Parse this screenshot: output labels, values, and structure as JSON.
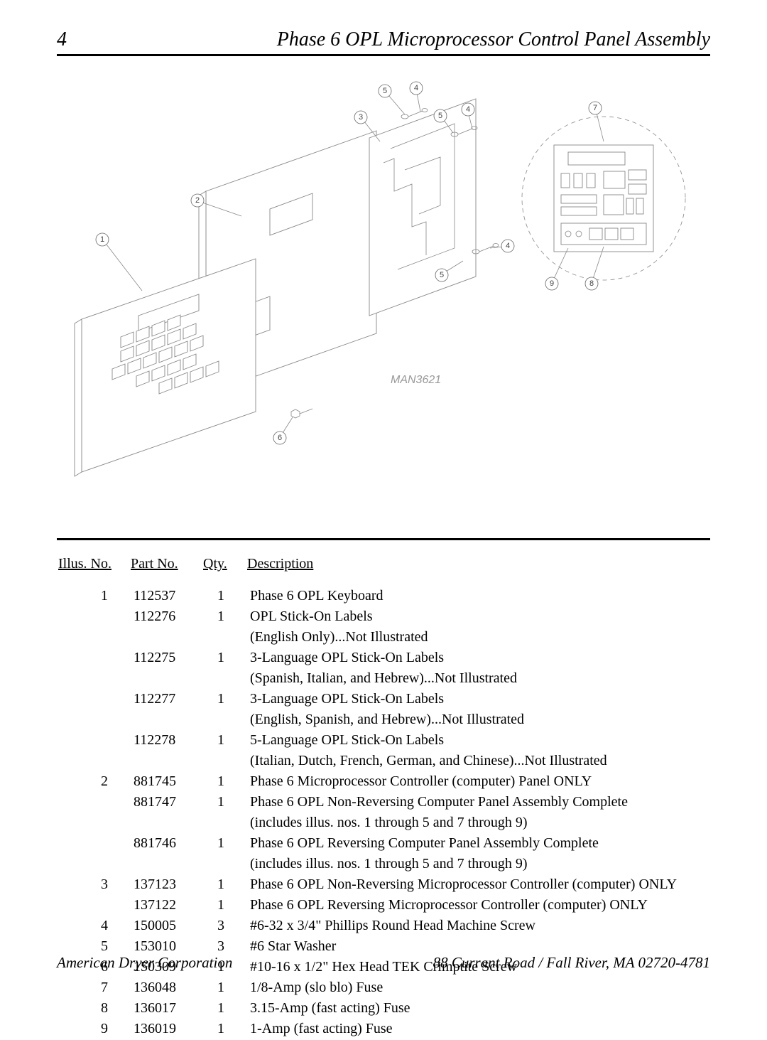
{
  "header": {
    "page_number": "4",
    "title": "Phase 6 OPL Microprocessor Control Panel Assembly"
  },
  "diagram": {
    "drawing_number": "MAN3621",
    "callouts": [
      "1",
      "2",
      "3",
      "4",
      "5",
      "6",
      "7",
      "8",
      "9"
    ],
    "label_color": "#999999",
    "line_color": "#888888"
  },
  "table": {
    "headers": {
      "illus": "Illus. No.",
      "part": "Part No.",
      "qty": "Qty.",
      "desc": "Description"
    },
    "rows": [
      {
        "illus": "1",
        "part": "112537",
        "qty": "1",
        "desc": "Phase 6 OPL Keyboard"
      },
      {
        "illus": "",
        "part": "112276",
        "qty": "1",
        "desc": "OPL Stick-On Labels"
      },
      {
        "illus": "",
        "part": "",
        "qty": "",
        "desc": "(English Only)...Not Illustrated"
      },
      {
        "illus": "",
        "part": "112275",
        "qty": "1",
        "desc": "3-Language OPL Stick-On Labels"
      },
      {
        "illus": "",
        "part": "",
        "qty": "",
        "desc": "(Spanish, Italian, and Hebrew)...Not Illustrated"
      },
      {
        "illus": "",
        "part": "112277",
        "qty": "1",
        "desc": "3-Language OPL Stick-On Labels"
      },
      {
        "illus": "",
        "part": "",
        "qty": "",
        "desc": "(English, Spanish, and Hebrew)...Not Illustrated"
      },
      {
        "illus": "",
        "part": "112278",
        "qty": "1",
        "desc": "5-Language OPL Stick-On Labels"
      },
      {
        "illus": "",
        "part": "",
        "qty": "",
        "desc": "(Italian, Dutch, French, German, and Chinese)...Not Illustrated"
      },
      {
        "illus": "2",
        "part": "881745",
        "qty": "1",
        "desc": "Phase 6 Microprocessor Controller (computer) Panel ONLY"
      },
      {
        "illus": "",
        "part": "881747",
        "qty": "1",
        "desc": "Phase 6 OPL Non-Reversing Computer Panel Assembly Complete"
      },
      {
        "illus": "",
        "part": "",
        "qty": "",
        "desc": "(includes illus. nos. 1 through 5 and 7 through 9)"
      },
      {
        "illus": "",
        "part": "881746",
        "qty": "1",
        "desc": "Phase 6 OPL Reversing Computer Panel Assembly Complete"
      },
      {
        "illus": "",
        "part": "",
        "qty": "",
        "desc": "(includes illus. nos. 1 through 5 and 7 through 9)"
      },
      {
        "illus": "3",
        "part": "137123",
        "qty": "1",
        "desc": "Phase 6 OPL Non-Reversing Microprocessor Controller (computer) ONLY"
      },
      {
        "illus": "",
        "part": "137122",
        "qty": "1",
        "desc": "Phase 6 OPL Reversing Microprocessor Controller (computer) ONLY"
      },
      {
        "illus": "4",
        "part": "150005",
        "qty": "3",
        "desc": "#6-32 x 3/4\" Phillips Round Head Machine Screw"
      },
      {
        "illus": "5",
        "part": "153010",
        "qty": "3",
        "desc": "#6 Star Washer"
      },
      {
        "illus": "6",
        "part": "150309",
        "qty": "1",
        "desc": "#10-16 x 1/2\" Hex Head TEK Crimptite Screw"
      },
      {
        "illus": "7",
        "part": "136048",
        "qty": "1",
        "desc": "1/8-Amp (slo blo) Fuse"
      },
      {
        "illus": "8",
        "part": "136017",
        "qty": "1",
        "desc": "3.15-Amp (fast acting) Fuse"
      },
      {
        "illus": "9",
        "part": "136019",
        "qty": "1",
        "desc": "1-Amp (fast acting) Fuse"
      }
    ],
    "font_size": 20,
    "line_height": 1.35
  },
  "footer": {
    "left": "American Dryer Corporation",
    "right": "88 Currant Road / Fall River, MA 02720-4781"
  },
  "colors": {
    "text": "#000000",
    "rule": "#000000",
    "diagram_stroke": "#888888",
    "background": "#ffffff"
  }
}
